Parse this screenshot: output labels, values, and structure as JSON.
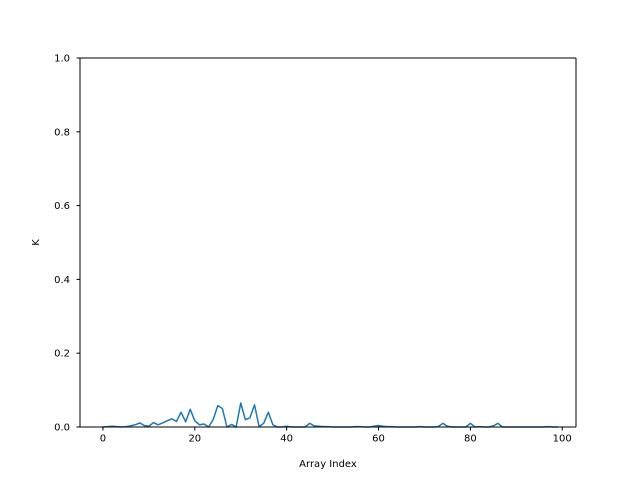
{
  "chart_data": {
    "type": "line",
    "title": "",
    "xlabel": "Array Index",
    "ylabel": "K",
    "xlim": [
      -5,
      103
    ],
    "ylim": [
      0,
      1
    ],
    "x_ticks": [
      0,
      20,
      40,
      60,
      80,
      100
    ],
    "y_ticks": [
      0.0,
      0.2,
      0.4,
      0.6,
      0.8,
      1.0
    ],
    "x_tick_labels": [
      "0",
      "20",
      "40",
      "60",
      "80",
      "100"
    ],
    "y_tick_labels": [
      "0.0",
      "0.2",
      "0.4",
      "0.6",
      "0.8",
      "1.0"
    ],
    "grid": false,
    "series": [
      {
        "color": "#1f77b4",
        "x": [
          0,
          1,
          2,
          3,
          4,
          5,
          6,
          7,
          8,
          9,
          10,
          11,
          12,
          13,
          14,
          15,
          16,
          17,
          18,
          19,
          20,
          21,
          22,
          23,
          24,
          25,
          26,
          27,
          28,
          29,
          30,
          31,
          32,
          33,
          34,
          35,
          36,
          37,
          38,
          39,
          40,
          41,
          42,
          43,
          44,
          45,
          46,
          47,
          48,
          49,
          50,
          51,
          52,
          53,
          54,
          55,
          56,
          57,
          58,
          59,
          60,
          61,
          62,
          63,
          64,
          65,
          66,
          67,
          68,
          69,
          70,
          71,
          72,
          73,
          74,
          75,
          76,
          77,
          78,
          79,
          80,
          81,
          82,
          83,
          84,
          85,
          86,
          87,
          88,
          89,
          90,
          91,
          92,
          93,
          94,
          95,
          96,
          97,
          98,
          99
        ],
        "y": [
          0,
          0.001,
          0.002,
          0.001,
          0,
          0.001,
          0.003,
          0.006,
          0.011,
          0.004,
          0.002,
          0.012,
          0.006,
          0.011,
          0.017,
          0.022,
          0.015,
          0.04,
          0.014,
          0.048,
          0.017,
          0.006,
          0.008,
          0,
          0.02,
          0.058,
          0.05,
          0,
          0.007,
          0,
          0.065,
          0.02,
          0.025,
          0.06,
          0.001,
          0.01,
          0.04,
          0.006,
          0,
          0,
          0.002,
          0,
          0,
          0,
          0,
          0.01,
          0.003,
          0.002,
          0.001,
          0.001,
          0,
          0,
          0,
          0,
          0,
          0.001,
          0.001,
          0,
          0,
          0.002,
          0.004,
          0.002,
          0.001,
          0.001,
          0,
          0,
          0,
          0,
          0,
          0.001,
          0,
          0,
          0,
          0.001,
          0.01,
          0.002,
          0,
          0,
          0,
          0,
          0.01,
          0,
          0.001,
          0,
          0,
          0.003,
          0.01,
          0,
          0,
          0,
          0,
          0,
          0,
          0,
          0,
          0,
          0,
          0.001,
          0,
          0
        ]
      }
    ]
  }
}
